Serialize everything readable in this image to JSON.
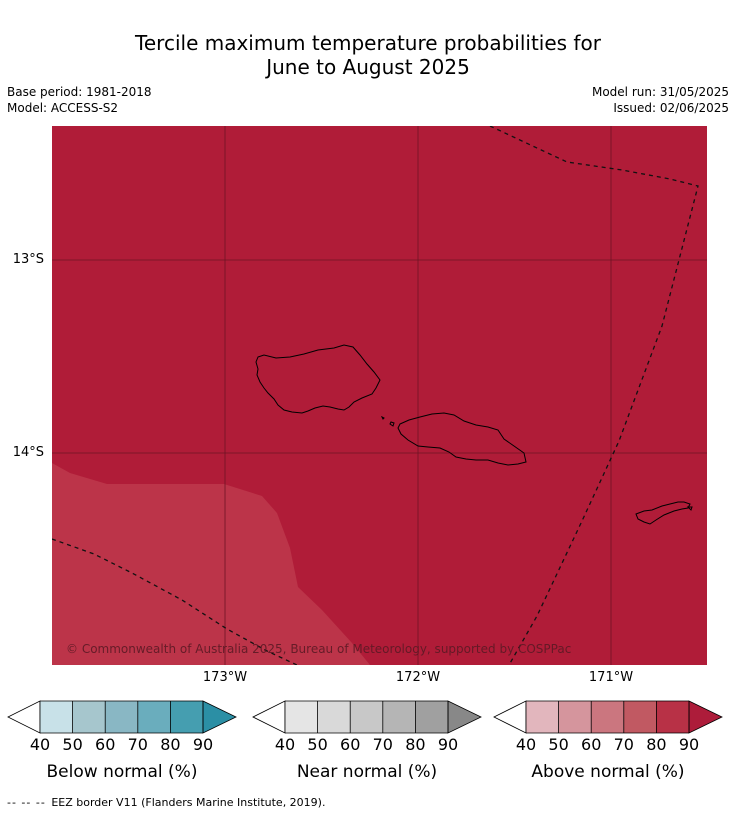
{
  "title": {
    "line1": "Tercile maximum temperature probabilities for",
    "line2": "June to August 2025"
  },
  "meta": {
    "base_period": "Base period: 1981-2018",
    "model": "Model: ACCESS-S2",
    "model_run": "Model run: 31/05/2025",
    "issued": "Issued: 02/06/2025"
  },
  "map": {
    "lat_labels": [
      "13°S",
      "14°S"
    ],
    "lon_labels": [
      "173°W",
      "172°W",
      "171°W"
    ],
    "copyright": "© Commonwealth of Australia 2025, Bureau of Meteorology, supported by COSPPac",
    "main_fill_color": "#b01c38",
    "secondary_fill_color": "#bc3449",
    "islands": [
      "Savai'i",
      "Upolu",
      "Tutuila"
    ]
  },
  "legends": [
    {
      "title": "Below normal (%)",
      "ticks": [
        "40",
        "50",
        "60",
        "70",
        "80",
        "90"
      ],
      "colors": [
        "#ffffff",
        "#c8e1e8",
        "#a6c6cd",
        "#89b7c4",
        "#6aadbd",
        "#459eb0",
        "#2b8fa5"
      ]
    },
    {
      "title": "Near normal (%)",
      "ticks": [
        "40",
        "50",
        "60",
        "70",
        "80",
        "90"
      ],
      "colors": [
        "#ffffff",
        "#e5e5e5",
        "#d9d9d9",
        "#c8c8c8",
        "#b5b5b5",
        "#a0a0a0",
        "#888888"
      ]
    },
    {
      "title": "Above normal (%)",
      "ticks": [
        "40",
        "50",
        "60",
        "70",
        "80",
        "90"
      ],
      "colors": [
        "#ffffff",
        "#e2b6bd",
        "#d5959d",
        "#cb767f",
        "#c15962",
        "#b83146",
        "#ad1c3a"
      ]
    }
  ],
  "footnote": {
    "dashes": "-- -- --",
    "text": "EEZ border V11 (Flanders Marine Institute, 2019)."
  }
}
